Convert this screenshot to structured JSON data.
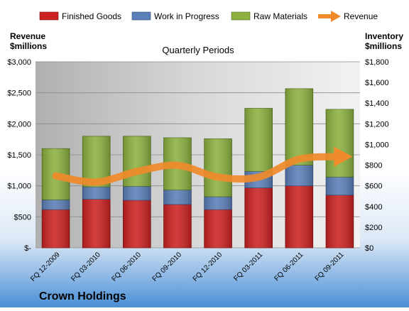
{
  "company": "Crown Holdings",
  "colors": {
    "finished_goods": "#cc2222",
    "work_in_progress": "#5b7fb8",
    "raw_materials": "#8cb140",
    "revenue": "#f08a2a"
  },
  "chart_data": {
    "type": "bar",
    "stacked": true,
    "title": "Quarterly Periods",
    "left_axis_label": [
      "Revenue",
      "$millions"
    ],
    "right_axis_label": [
      "Inventory",
      "$millions"
    ],
    "categories": [
      "FQ 12-2009",
      "FQ 03-2010",
      "FQ 06-2010",
      "FQ 09-2010",
      "FQ 12-2010",
      "FQ 03-2011",
      "FQ 06-2011",
      "FQ 09-2011"
    ],
    "series": [
      {
        "name": "Finished Goods",
        "axis": "right",
        "values": [
          370,
          470,
          460,
          420,
          370,
          580,
          600,
          510
        ]
      },
      {
        "name": "Work in Progress",
        "axis": "right",
        "values": [
          95,
          120,
          135,
          140,
          125,
          160,
          200,
          175
        ]
      },
      {
        "name": "Raw Materials",
        "axis": "right",
        "values": [
          495,
          490,
          485,
          505,
          560,
          610,
          740,
          655
        ]
      },
      {
        "name": "Revenue",
        "axis": "left",
        "type": "line",
        "values": [
          1160,
          1060,
          1230,
          1330,
          1140,
          1140,
          1430,
          1470
        ]
      }
    ],
    "left_ylim": [
      0,
      3000
    ],
    "left_ticks": [
      "$-",
      "$500",
      "$1,000",
      "$1,500",
      "$2,000",
      "$2,500",
      "$3,000"
    ],
    "right_ylim": [
      0,
      1800
    ],
    "right_ticks": [
      "$0",
      "$200",
      "$400",
      "$600",
      "$800",
      "$1,000",
      "$1,200",
      "$1,400",
      "$1,600",
      "$1,800"
    ],
    "grid": true,
    "legend_position": "top"
  }
}
